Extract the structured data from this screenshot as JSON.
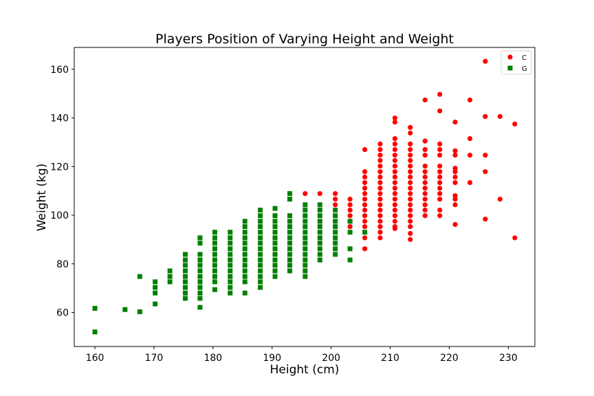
{
  "chart_data": {
    "type": "scatter",
    "title": "Players Position of Varying Height and Weight",
    "xlabel": "Height (cm)",
    "ylabel": "Weight (kg)",
    "xlim": [
      156.5,
      234.5
    ],
    "ylim": [
      46,
      169
    ],
    "xticks": [
      160,
      170,
      180,
      190,
      200,
      210,
      220,
      230
    ],
    "yticks": [
      60,
      80,
      100,
      120,
      140,
      160
    ],
    "grid": false,
    "legend_position": "top-right",
    "series": [
      {
        "name": "C",
        "marker": "circle",
        "color": "#ff0000",
        "points": [
          [
            195.6,
            108.9
          ],
          [
            198.1,
            108.9
          ],
          [
            200.7,
            108.9
          ],
          [
            200.7,
            106.6
          ],
          [
            200.7,
            104.3
          ],
          [
            203.2,
            106.6
          ],
          [
            203.2,
            104.3
          ],
          [
            203.2,
            102.1
          ],
          [
            203.2,
            99.8
          ],
          [
            203.2,
            97.5
          ],
          [
            203.2,
            95.3
          ],
          [
            205.7,
            127.0
          ],
          [
            205.7,
            117.9
          ],
          [
            205.7,
            115.7
          ],
          [
            205.7,
            113.4
          ],
          [
            205.7,
            111.1
          ],
          [
            205.7,
            108.9
          ],
          [
            205.7,
            106.6
          ],
          [
            205.7,
            104.3
          ],
          [
            205.7,
            102.1
          ],
          [
            205.7,
            99.8
          ],
          [
            205.7,
            97.5
          ],
          [
            205.7,
            95.3
          ],
          [
            205.7,
            90.7
          ],
          [
            205.7,
            86.2
          ],
          [
            208.3,
            129.3
          ],
          [
            208.3,
            127.0
          ],
          [
            208.3,
            124.7
          ],
          [
            208.3,
            122.5
          ],
          [
            208.3,
            120.2
          ],
          [
            208.3,
            117.9
          ],
          [
            208.3,
            115.7
          ],
          [
            208.3,
            113.4
          ],
          [
            208.3,
            111.1
          ],
          [
            208.3,
            108.9
          ],
          [
            208.3,
            106.6
          ],
          [
            208.3,
            104.3
          ],
          [
            208.3,
            102.1
          ],
          [
            208.3,
            99.8
          ],
          [
            208.3,
            97.5
          ],
          [
            208.3,
            95.3
          ],
          [
            208.3,
            93.0
          ],
          [
            208.3,
            90.7
          ],
          [
            210.8,
            140.0
          ],
          [
            210.8,
            138.3
          ],
          [
            210.8,
            131.5
          ],
          [
            210.8,
            129.3
          ],
          [
            210.8,
            127.0
          ],
          [
            210.8,
            124.7
          ],
          [
            210.8,
            122.5
          ],
          [
            210.8,
            120.2
          ],
          [
            210.8,
            117.9
          ],
          [
            210.8,
            115.7
          ],
          [
            210.8,
            113.4
          ],
          [
            210.8,
            111.1
          ],
          [
            210.8,
            108.9
          ],
          [
            210.8,
            106.6
          ],
          [
            210.8,
            104.3
          ],
          [
            210.8,
            102.1
          ],
          [
            210.8,
            99.8
          ],
          [
            210.8,
            97.5
          ],
          [
            210.8,
            95.3
          ],
          [
            210.8,
            94.5
          ],
          [
            213.4,
            136.1
          ],
          [
            213.4,
            133.8
          ],
          [
            213.4,
            129.3
          ],
          [
            213.4,
            127.0
          ],
          [
            213.4,
            124.7
          ],
          [
            213.4,
            122.5
          ],
          [
            213.4,
            120.2
          ],
          [
            213.4,
            117.9
          ],
          [
            213.4,
            115.7
          ],
          [
            213.4,
            113.4
          ],
          [
            213.4,
            111.1
          ],
          [
            213.4,
            108.9
          ],
          [
            213.4,
            106.6
          ],
          [
            213.4,
            104.3
          ],
          [
            213.4,
            102.1
          ],
          [
            213.4,
            99.8
          ],
          [
            213.4,
            97.5
          ],
          [
            213.4,
            95.3
          ],
          [
            213.4,
            92.5
          ],
          [
            213.4,
            90.0
          ],
          [
            215.9,
            147.4
          ],
          [
            215.9,
            130.5
          ],
          [
            215.9,
            127.0
          ],
          [
            215.9,
            124.7
          ],
          [
            215.9,
            120.2
          ],
          [
            215.9,
            117.9
          ],
          [
            215.9,
            115.7
          ],
          [
            215.9,
            113.4
          ],
          [
            215.9,
            111.1
          ],
          [
            215.9,
            108.9
          ],
          [
            215.9,
            106.6
          ],
          [
            215.9,
            104.3
          ],
          [
            215.9,
            102.1
          ],
          [
            215.9,
            99.8
          ],
          [
            218.4,
            149.7
          ],
          [
            218.4,
            142.9
          ],
          [
            218.4,
            129.3
          ],
          [
            218.4,
            127.0
          ],
          [
            218.4,
            124.7
          ],
          [
            218.4,
            120.2
          ],
          [
            218.4,
            117.9
          ],
          [
            218.4,
            115.7
          ],
          [
            218.4,
            113.4
          ],
          [
            218.4,
            111.1
          ],
          [
            218.4,
            108.9
          ],
          [
            218.4,
            106.6
          ],
          [
            218.4,
            102.1
          ],
          [
            218.4,
            99.8
          ],
          [
            221.0,
            138.3
          ],
          [
            221.0,
            126.5
          ],
          [
            221.0,
            124.7
          ],
          [
            221.0,
            119.3
          ],
          [
            221.0,
            117.9
          ],
          [
            221.0,
            115.7
          ],
          [
            221.0,
            113.4
          ],
          [
            221.0,
            108.0
          ],
          [
            221.0,
            106.6
          ],
          [
            221.0,
            104.3
          ],
          [
            221.0,
            96.2
          ],
          [
            223.5,
            147.4
          ],
          [
            223.5,
            131.5
          ],
          [
            223.5,
            124.7
          ],
          [
            223.5,
            113.4
          ],
          [
            226.1,
            163.3
          ],
          [
            226.1,
            140.6
          ],
          [
            226.1,
            124.7
          ],
          [
            226.1,
            117.9
          ],
          [
            226.1,
            98.4
          ],
          [
            228.6,
            140.6
          ],
          [
            228.6,
            106.6
          ],
          [
            231.1,
            137.5
          ],
          [
            231.1,
            90.7
          ]
        ]
      },
      {
        "name": "G",
        "marker": "square",
        "color": "#008000",
        "points": [
          [
            160.0,
            61.7
          ],
          [
            160.0,
            52.0
          ],
          [
            165.1,
            61.2
          ],
          [
            167.6,
            74.8
          ],
          [
            167.6,
            60.3
          ],
          [
            170.2,
            72.6
          ],
          [
            170.2,
            70.3
          ],
          [
            170.2,
            68.0
          ],
          [
            170.2,
            63.5
          ],
          [
            172.7,
            77.1
          ],
          [
            172.7,
            74.8
          ],
          [
            172.7,
            72.6
          ],
          [
            175.3,
            83.9
          ],
          [
            175.3,
            81.6
          ],
          [
            175.3,
            79.4
          ],
          [
            175.3,
            77.1
          ],
          [
            175.3,
            74.8
          ],
          [
            175.3,
            72.6
          ],
          [
            175.3,
            70.3
          ],
          [
            175.3,
            68.0
          ],
          [
            175.3,
            65.8
          ],
          [
            177.8,
            90.7
          ],
          [
            177.8,
            88.5
          ],
          [
            177.8,
            83.9
          ],
          [
            177.8,
            81.6
          ],
          [
            177.8,
            79.4
          ],
          [
            177.8,
            77.1
          ],
          [
            177.8,
            74.8
          ],
          [
            177.8,
            72.6
          ],
          [
            177.8,
            70.3
          ],
          [
            177.8,
            68.0
          ],
          [
            177.8,
            65.8
          ],
          [
            177.8,
            62.1
          ],
          [
            180.3,
            93.0
          ],
          [
            180.3,
            90.7
          ],
          [
            180.3,
            88.5
          ],
          [
            180.3,
            86.2
          ],
          [
            180.3,
            83.9
          ],
          [
            180.3,
            81.6
          ],
          [
            180.3,
            79.4
          ],
          [
            180.3,
            77.1
          ],
          [
            180.3,
            74.8
          ],
          [
            180.3,
            72.6
          ],
          [
            180.3,
            69.4
          ],
          [
            182.9,
            93.0
          ],
          [
            182.9,
            90.7
          ],
          [
            182.9,
            88.5
          ],
          [
            182.9,
            86.2
          ],
          [
            182.9,
            83.9
          ],
          [
            182.9,
            81.6
          ],
          [
            182.9,
            79.4
          ],
          [
            182.9,
            77.1
          ],
          [
            182.9,
            74.8
          ],
          [
            182.9,
            72.6
          ],
          [
            182.9,
            70.3
          ],
          [
            182.9,
            68.0
          ],
          [
            185.4,
            97.5
          ],
          [
            185.4,
            95.3
          ],
          [
            185.4,
            93.0
          ],
          [
            185.4,
            90.7
          ],
          [
            185.4,
            88.5
          ],
          [
            185.4,
            86.2
          ],
          [
            185.4,
            83.9
          ],
          [
            185.4,
            81.6
          ],
          [
            185.4,
            79.4
          ],
          [
            185.4,
            77.1
          ],
          [
            185.4,
            74.8
          ],
          [
            185.4,
            72.6
          ],
          [
            185.4,
            68.0
          ],
          [
            188.0,
            102.1
          ],
          [
            188.0,
            99.8
          ],
          [
            188.0,
            97.5
          ],
          [
            188.0,
            95.3
          ],
          [
            188.0,
            93.0
          ],
          [
            188.0,
            90.7
          ],
          [
            188.0,
            88.5
          ],
          [
            188.0,
            86.2
          ],
          [
            188.0,
            83.9
          ],
          [
            188.0,
            81.6
          ],
          [
            188.0,
            79.4
          ],
          [
            188.0,
            77.1
          ],
          [
            188.0,
            74.8
          ],
          [
            188.0,
            72.6
          ],
          [
            188.0,
            70.3
          ],
          [
            190.5,
            102.8
          ],
          [
            190.5,
            99.8
          ],
          [
            190.5,
            97.5
          ],
          [
            190.5,
            95.3
          ],
          [
            190.5,
            93.0
          ],
          [
            190.5,
            90.7
          ],
          [
            190.5,
            88.5
          ],
          [
            190.5,
            86.2
          ],
          [
            190.5,
            83.9
          ],
          [
            190.5,
            81.6
          ],
          [
            190.5,
            79.4
          ],
          [
            190.5,
            77.1
          ],
          [
            190.5,
            74.8
          ],
          [
            193.0,
            108.9
          ],
          [
            193.0,
            106.6
          ],
          [
            193.0,
            99.8
          ],
          [
            193.0,
            97.5
          ],
          [
            193.0,
            95.3
          ],
          [
            193.0,
            93.0
          ],
          [
            193.0,
            90.7
          ],
          [
            193.0,
            88.5
          ],
          [
            193.0,
            86.2
          ],
          [
            193.0,
            83.9
          ],
          [
            193.0,
            81.6
          ],
          [
            193.0,
            79.4
          ],
          [
            193.0,
            77.1
          ],
          [
            195.6,
            104.3
          ],
          [
            195.6,
            102.1
          ],
          [
            195.6,
            99.8
          ],
          [
            195.6,
            97.5
          ],
          [
            195.6,
            95.3
          ],
          [
            195.6,
            93.0
          ],
          [
            195.6,
            90.7
          ],
          [
            195.6,
            88.5
          ],
          [
            195.6,
            86.2
          ],
          [
            195.6,
            83.9
          ],
          [
            195.6,
            81.6
          ],
          [
            195.6,
            79.4
          ],
          [
            195.6,
            77.1
          ],
          [
            195.6,
            74.8
          ],
          [
            198.1,
            104.3
          ],
          [
            198.1,
            102.1
          ],
          [
            198.1,
            99.8
          ],
          [
            198.1,
            97.5
          ],
          [
            198.1,
            95.3
          ],
          [
            198.1,
            93.0
          ],
          [
            198.1,
            90.7
          ],
          [
            198.1,
            88.5
          ],
          [
            198.1,
            86.2
          ],
          [
            198.1,
            83.9
          ],
          [
            198.1,
            81.6
          ],
          [
            200.7,
            102.1
          ],
          [
            200.7,
            99.8
          ],
          [
            200.7,
            97.5
          ],
          [
            200.7,
            95.3
          ],
          [
            200.7,
            93.0
          ],
          [
            200.7,
            90.7
          ],
          [
            200.7,
            88.5
          ],
          [
            200.7,
            86.2
          ],
          [
            200.7,
            83.9
          ],
          [
            203.2,
            97.5
          ],
          [
            203.2,
            93.0
          ],
          [
            203.2,
            86.2
          ],
          [
            203.2,
            81.6
          ],
          [
            205.7,
            93.0
          ]
        ]
      }
    ]
  }
}
